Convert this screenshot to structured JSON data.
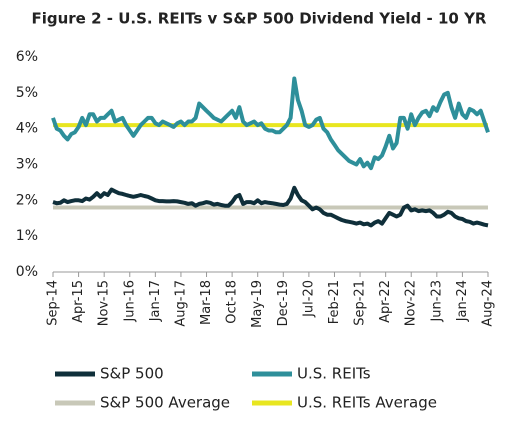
{
  "chart_data": {
    "type": "line",
    "title": "Figure 2 - U.S. REITs v S&P 500 Dividend Yield - 10 YR",
    "categories": [
      "Sep-14",
      null,
      null,
      null,
      null,
      null,
      null,
      "Apr-15",
      null,
      null,
      null,
      null,
      null,
      null,
      "Nov-15",
      null,
      null,
      null,
      null,
      null,
      null,
      "Jun-16",
      null,
      null,
      null,
      null,
      null,
      null,
      "Jan-17",
      null,
      null,
      null,
      null,
      null,
      null,
      "Aug-17",
      null,
      null,
      null,
      null,
      null,
      null,
      "Mar-18",
      null,
      null,
      null,
      null,
      null,
      null,
      "Oct-18",
      null,
      null,
      null,
      null,
      null,
      null,
      "May-19",
      null,
      null,
      null,
      null,
      null,
      null,
      "Dec-19",
      null,
      null,
      null,
      null,
      null,
      null,
      "Jul-20",
      null,
      null,
      null,
      null,
      null,
      null,
      "Feb-21",
      null,
      null,
      null,
      null,
      null,
      null,
      "Sep-21",
      null,
      null,
      null,
      null,
      null,
      null,
      "Apr-22",
      null,
      null,
      null,
      null,
      null,
      null,
      "Nov-22",
      null,
      null,
      null,
      null,
      null,
      null,
      "Jun-23",
      null,
      null,
      null,
      null,
      null,
      null,
      "Jan-24",
      null,
      null,
      null,
      null,
      null,
      null,
      "Aug-24"
    ],
    "series": [
      {
        "name": "S&P 500",
        "color": "#0f2f3a",
        "values": [
          1.95,
          1.92,
          1.93,
          2.0,
          1.95,
          1.98,
          2.0,
          2.0,
          1.98,
          2.05,
          2.02,
          2.1,
          2.2,
          2.1,
          2.2,
          2.15,
          2.3,
          2.25,
          2.2,
          2.18,
          2.15,
          2.12,
          2.1,
          2.12,
          2.15,
          2.12,
          2.1,
          2.05,
          2.0,
          1.98,
          1.98,
          1.97,
          1.97,
          1.98,
          1.97,
          1.95,
          1.93,
          1.9,
          1.92,
          1.85,
          1.9,
          1.92,
          1.95,
          1.93,
          1.88,
          1.9,
          1.87,
          1.85,
          1.85,
          1.95,
          2.1,
          2.15,
          1.9,
          1.95,
          1.95,
          1.92,
          2.0,
          1.92,
          1.95,
          1.93,
          1.92,
          1.9,
          1.88,
          1.87,
          1.9,
          2.05,
          2.35,
          2.15,
          2.0,
          1.95,
          1.85,
          1.75,
          1.8,
          1.75,
          1.65,
          1.6,
          1.6,
          1.55,
          1.5,
          1.45,
          1.42,
          1.4,
          1.38,
          1.35,
          1.38,
          1.33,
          1.35,
          1.3,
          1.38,
          1.42,
          1.35,
          1.5,
          1.65,
          1.6,
          1.55,
          1.6,
          1.8,
          1.85,
          1.72,
          1.75,
          1.7,
          1.72,
          1.7,
          1.72,
          1.65,
          1.55,
          1.55,
          1.6,
          1.68,
          1.65,
          1.55,
          1.5,
          1.48,
          1.42,
          1.4,
          1.35,
          1.38,
          1.35,
          1.32,
          1.3
        ]
      },
      {
        "name": "U.S. REITs",
        "color": "#2e8f9a",
        "values": [
          4.3,
          4.0,
          3.95,
          3.8,
          3.7,
          3.85,
          3.9,
          4.05,
          4.3,
          4.1,
          4.4,
          4.4,
          4.2,
          4.3,
          4.3,
          4.4,
          4.5,
          4.2,
          4.25,
          4.3,
          4.1,
          3.95,
          3.8,
          3.95,
          4.1,
          4.2,
          4.3,
          4.3,
          4.15,
          4.1,
          4.2,
          4.15,
          4.1,
          4.05,
          4.15,
          4.2,
          4.1,
          4.2,
          4.2,
          4.3,
          4.7,
          4.6,
          4.5,
          4.4,
          4.3,
          4.25,
          4.2,
          4.3,
          4.4,
          4.5,
          4.3,
          4.6,
          4.2,
          4.1,
          4.15,
          4.2,
          4.1,
          4.15,
          4.0,
          3.95,
          3.95,
          3.9,
          3.9,
          4.0,
          4.1,
          4.3,
          5.4,
          4.8,
          4.5,
          4.1,
          4.05,
          4.1,
          4.25,
          4.3,
          4.0,
          3.9,
          3.7,
          3.55,
          3.4,
          3.3,
          3.2,
          3.1,
          3.05,
          3.0,
          3.15,
          2.95,
          3.05,
          2.9,
          3.2,
          3.15,
          3.25,
          3.5,
          3.8,
          3.45,
          3.6,
          4.3,
          4.3,
          4.0,
          4.4,
          4.1,
          4.3,
          4.45,
          4.5,
          4.35,
          4.6,
          4.5,
          4.75,
          4.95,
          5.0,
          4.6,
          4.3,
          4.7,
          4.4,
          4.3,
          4.55,
          4.5,
          4.4,
          4.5,
          4.2,
          3.9
        ]
      },
      {
        "name": "S&P 500 Average",
        "color": "#c8c8b8",
        "values": [
          1.8,
          1.8,
          1.8,
          1.8,
          1.8,
          1.8,
          1.8,
          1.8,
          1.8,
          1.8,
          1.8,
          1.8,
          1.8,
          1.8,
          1.8,
          1.8,
          1.8,
          1.8,
          1.8,
          1.8,
          1.8,
          1.8,
          1.8,
          1.8,
          1.8,
          1.8,
          1.8,
          1.8,
          1.8,
          1.8,
          1.8,
          1.8,
          1.8,
          1.8,
          1.8,
          1.8,
          1.8,
          1.8,
          1.8,
          1.8,
          1.8,
          1.8,
          1.8,
          1.8,
          1.8,
          1.8,
          1.8,
          1.8,
          1.8,
          1.8,
          1.8,
          1.8,
          1.8,
          1.8,
          1.8,
          1.8,
          1.8,
          1.8,
          1.8,
          1.8,
          1.8,
          1.8,
          1.8,
          1.8,
          1.8,
          1.8,
          1.8,
          1.8,
          1.8,
          1.8,
          1.8,
          1.8,
          1.8,
          1.8,
          1.8,
          1.8,
          1.8,
          1.8,
          1.8,
          1.8,
          1.8,
          1.8,
          1.8,
          1.8,
          1.8,
          1.8,
          1.8,
          1.8,
          1.8,
          1.8,
          1.8,
          1.8,
          1.8,
          1.8,
          1.8,
          1.8,
          1.8,
          1.8,
          1.8,
          1.8,
          1.8,
          1.8,
          1.8,
          1.8,
          1.8,
          1.8,
          1.8,
          1.8,
          1.8,
          1.8,
          1.8,
          1.8,
          1.8,
          1.8,
          1.8,
          1.8,
          1.8,
          1.8,
          1.8,
          1.8
        ]
      },
      {
        "name": "U.S. REITs Average",
        "color": "#e8e620",
        "values": [
          4.1,
          4.1,
          4.1,
          4.1,
          4.1,
          4.1,
          4.1,
          4.1,
          4.1,
          4.1,
          4.1,
          4.1,
          4.1,
          4.1,
          4.1,
          4.1,
          4.1,
          4.1,
          4.1,
          4.1,
          4.1,
          4.1,
          4.1,
          4.1,
          4.1,
          4.1,
          4.1,
          4.1,
          4.1,
          4.1,
          4.1,
          4.1,
          4.1,
          4.1,
          4.1,
          4.1,
          4.1,
          4.1,
          4.1,
          4.1,
          4.1,
          4.1,
          4.1,
          4.1,
          4.1,
          4.1,
          4.1,
          4.1,
          4.1,
          4.1,
          4.1,
          4.1,
          4.1,
          4.1,
          4.1,
          4.1,
          4.1,
          4.1,
          4.1,
          4.1,
          4.1,
          4.1,
          4.1,
          4.1,
          4.1,
          4.1,
          4.1,
          4.1,
          4.1,
          4.1,
          4.1,
          4.1,
          4.1,
          4.1,
          4.1,
          4.1,
          4.1,
          4.1,
          4.1,
          4.1,
          4.1,
          4.1,
          4.1,
          4.1,
          4.1,
          4.1,
          4.1,
          4.1,
          4.1,
          4.1,
          4.1,
          4.1,
          4.1,
          4.1,
          4.1,
          4.1,
          4.1,
          4.1,
          4.1,
          4.1,
          4.1,
          4.1,
          4.1,
          4.1,
          4.1,
          4.1,
          4.1,
          4.1,
          4.1,
          4.1,
          4.1,
          4.1,
          4.1,
          4.1,
          4.1,
          4.1,
          4.1,
          4.1,
          4.1,
          4.1
        ]
      }
    ],
    "ylim": [
      0,
      6
    ],
    "yticks": [
      {
        "value": 0,
        "label": "0%"
      },
      {
        "value": 1,
        "label": "1%"
      },
      {
        "value": 2,
        "label": "2%"
      },
      {
        "value": 3,
        "label": "3%"
      },
      {
        "value": 4,
        "label": "4%"
      },
      {
        "value": 5,
        "label": "5%"
      },
      {
        "value": 6,
        "label": "6%"
      }
    ]
  }
}
